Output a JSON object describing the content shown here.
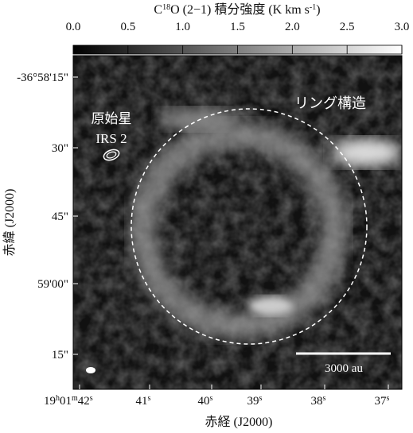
{
  "colorbar": {
    "title": [
      "C",
      "18",
      "O (2−1) 積分強度 (K km s",
      "-1",
      ")"
    ],
    "ticks": [
      "0.0",
      "0.5",
      "1.0",
      "1.5",
      "2.0",
      "2.5",
      "3.0"
    ]
  },
  "y_axis": {
    "label": "赤緯 (J2000)",
    "ticks": [
      "-36°58'15\"",
      "30\"",
      "45\"",
      "59'00\"",
      "15\""
    ]
  },
  "x_axis": {
    "label": "赤経 (J2000)",
    "ticks": [
      [
        "19",
        "h",
        "01",
        "m",
        "42",
        "s"
      ],
      [
        "41",
        "s"
      ],
      [
        "40",
        "s"
      ],
      [
        "39",
        "s"
      ],
      [
        "38",
        "s"
      ],
      [
        "37",
        "s"
      ]
    ]
  },
  "annotations": {
    "ring": "リング構造",
    "protostar": "原始星",
    "source": "IRS 2",
    "scale": "3000 au"
  }
}
